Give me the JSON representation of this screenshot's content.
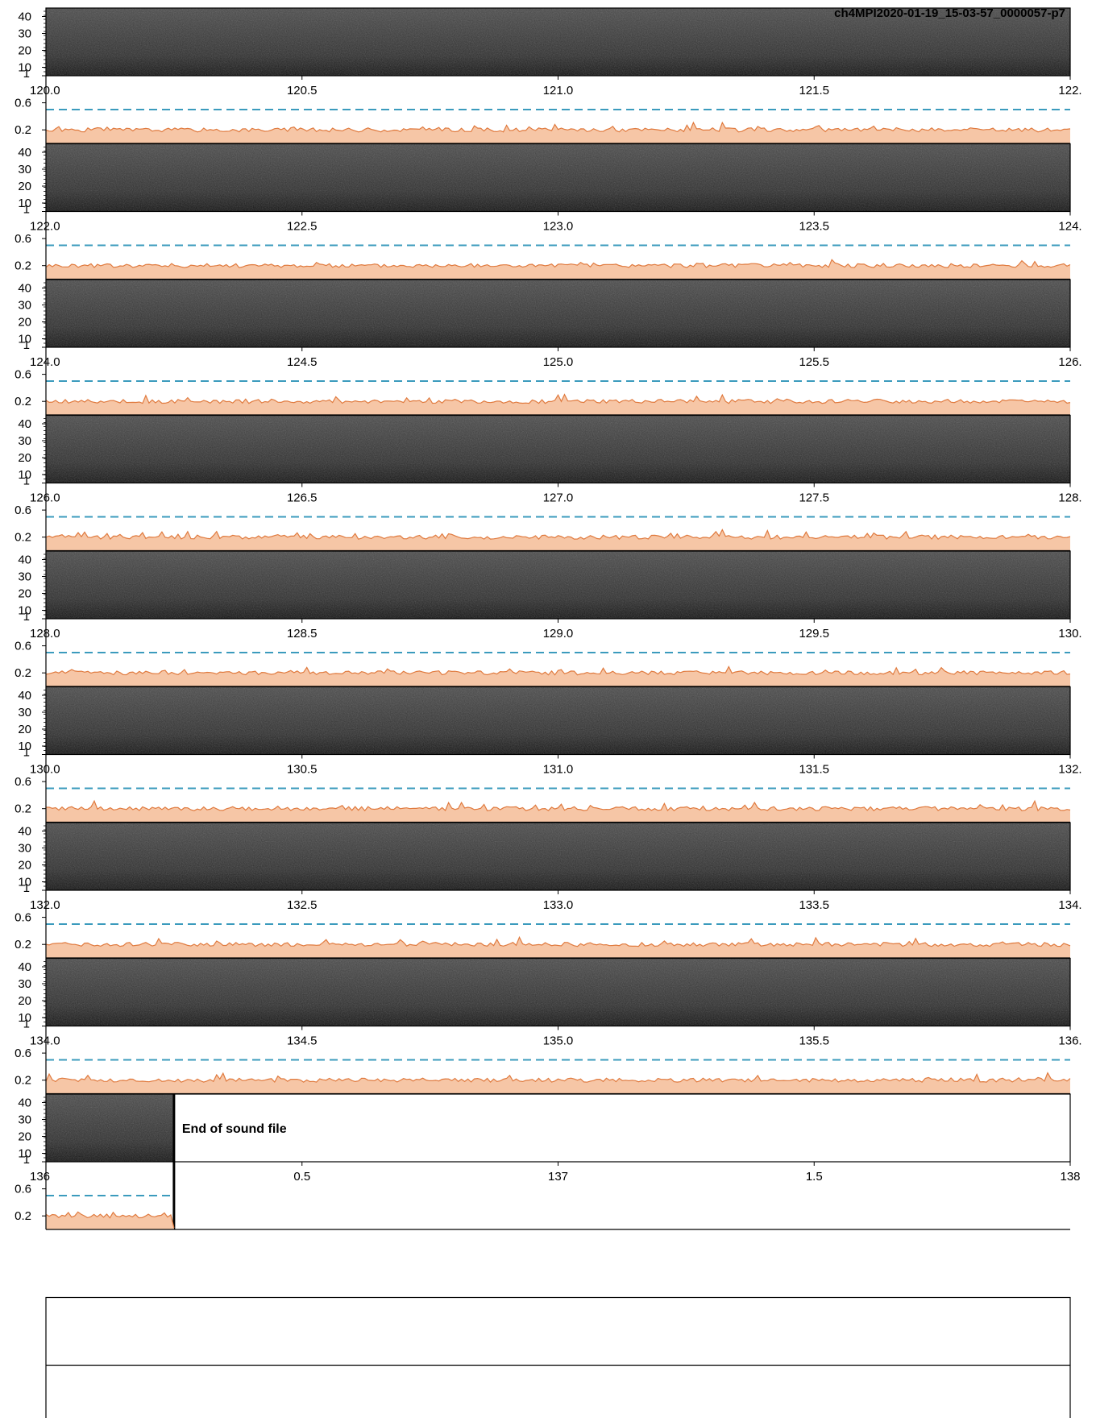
{
  "file_label": "ch4MPI2020-01-19_15-03-57_0000057-p7",
  "end_label": "End of sound file",
  "colors": {
    "spectrogram_dark": "#1a1a1a",
    "spectrogram_light": "#5a5a5a",
    "envelope_fill": "#f6c6a6",
    "envelope_line": "#e07a3e",
    "threshold_line": "#3b9bbd",
    "axis": "#000000",
    "background": "#ffffff"
  },
  "chart_data": {
    "type": "area",
    "spectrogram_yticks": [
      "40",
      "30",
      "20",
      "10"
    ],
    "envelope_yticks": [
      "1",
      "0.6",
      "0.2"
    ],
    "spectrogram_ylim": [
      5,
      45
    ],
    "envelope_ylim": [
      0,
      1
    ],
    "threshold": 0.5,
    "envelope_level": 0.2,
    "rows": [
      {
        "xlim": [
          120.0,
          122.0
        ],
        "xticks": [
          "120.0",
          "120.5",
          "121.0",
          "121.5",
          "122."
        ]
      },
      {
        "xlim": [
          122.0,
          124.0
        ],
        "xticks": [
          "122.0",
          "122.5",
          "123.0",
          "123.5",
          "124."
        ]
      },
      {
        "xlim": [
          124.0,
          126.0
        ],
        "xticks": [
          "124.0",
          "124.5",
          "125.0",
          "125.5",
          "126."
        ]
      },
      {
        "xlim": [
          126.0,
          128.0
        ],
        "xticks": [
          "126.0",
          "126.5",
          "127.0",
          "127.5",
          "128."
        ]
      },
      {
        "xlim": [
          128.0,
          130.0
        ],
        "xticks": [
          "128.0",
          "128.5",
          "129.0",
          "129.5",
          "130."
        ]
      },
      {
        "xlim": [
          130.0,
          132.0
        ],
        "xticks": [
          "130.0",
          "130.5",
          "131.0",
          "131.5",
          "132."
        ]
      },
      {
        "xlim": [
          132.0,
          134.0
        ],
        "xticks": [
          "132.0",
          "132.5",
          "133.0",
          "133.5",
          "134."
        ]
      },
      {
        "xlim": [
          134.0,
          136.0
        ],
        "xticks": [
          "134.0",
          "134.5",
          "135.0",
          "135.5",
          "136."
        ]
      },
      {
        "xlim": [
          0,
          2
        ],
        "xticks": [
          "136",
          "0.5",
          "137",
          "1.5",
          "138"
        ],
        "data_end": 0.25,
        "end_of_file": true
      }
    ],
    "grid": false,
    "legend": "none"
  }
}
